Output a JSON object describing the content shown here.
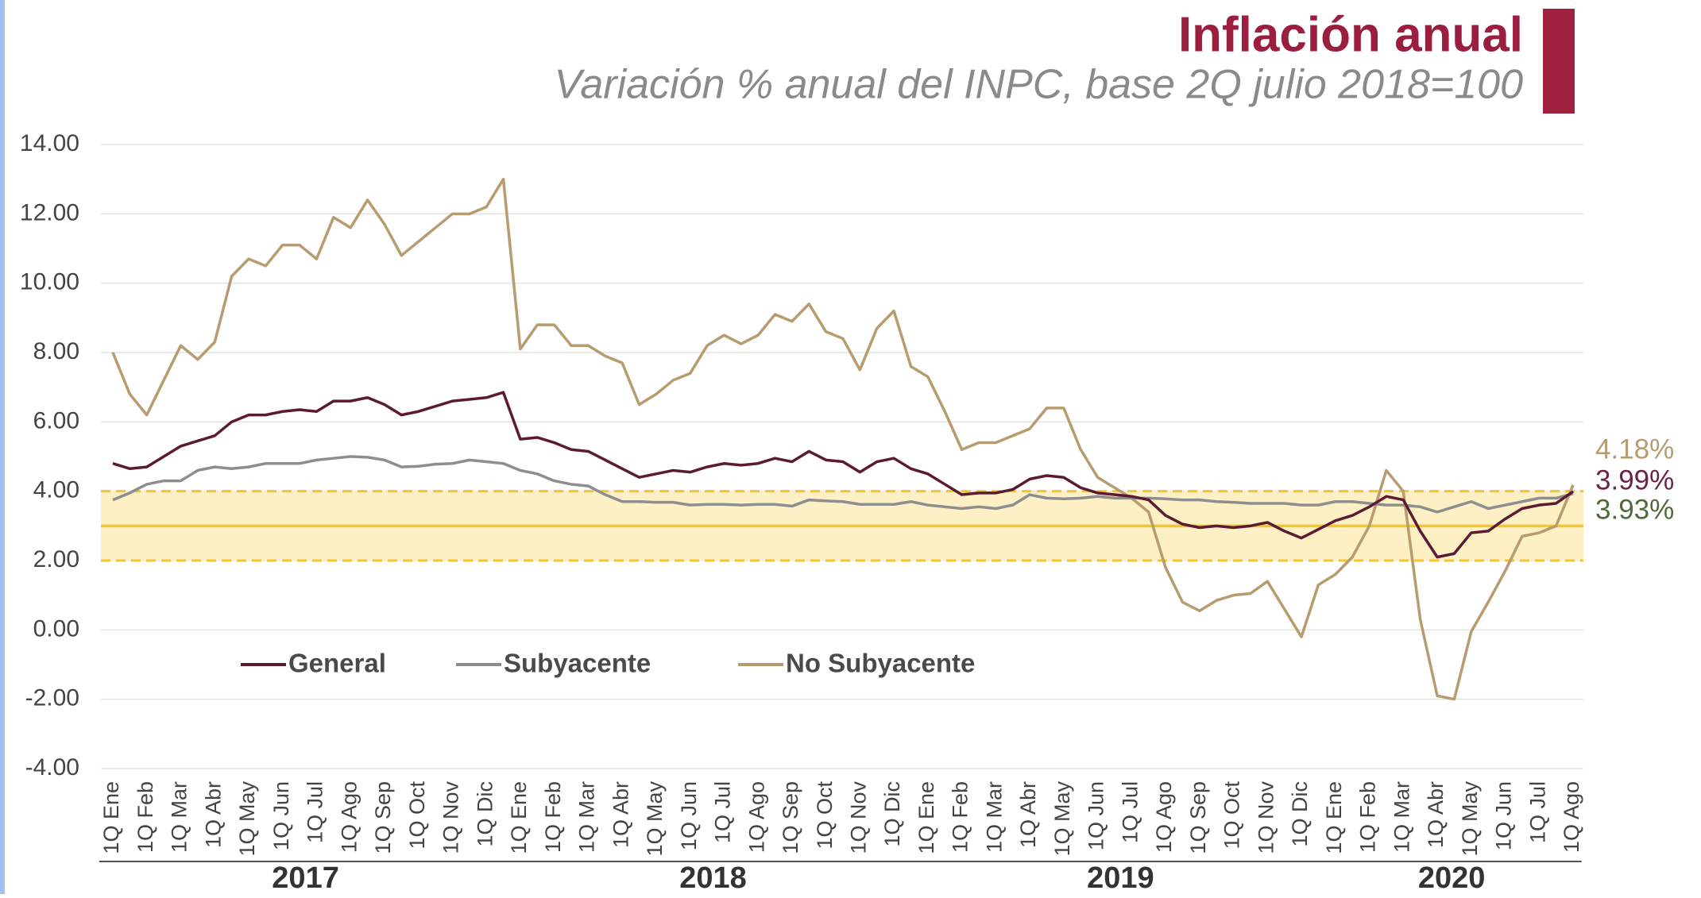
{
  "chart_data": {
    "type": "line",
    "title": "Inflación anual",
    "subtitle": "Variación % anual del INPC, base 2Q julio 2018=100",
    "categories": [
      "1Q Ene",
      null,
      "1Q Feb",
      null,
      "1Q Mar",
      null,
      "1Q Abr",
      null,
      "1Q May",
      null,
      "1Q Jun",
      null,
      "1Q Jul",
      null,
      "1Q Ago",
      null,
      "1Q Sep",
      null,
      "1Q Oct",
      null,
      "1Q Nov",
      null,
      "1Q Dic",
      null,
      "1Q Ene",
      null,
      "1Q Feb",
      null,
      "1Q Mar",
      null,
      "1Q Abr",
      null,
      "1Q May",
      null,
      "1Q Jun",
      null,
      "1Q Jul",
      null,
      "1Q Ago",
      null,
      "1Q Sep",
      null,
      "1Q Oct",
      null,
      "1Q Nov",
      null,
      "1Q Dic",
      null,
      "1Q Ene",
      null,
      "1Q Feb",
      null,
      "1Q Mar",
      null,
      "1Q Abr",
      null,
      "1Q May",
      null,
      "1Q Jun",
      null,
      "1Q Jul",
      null,
      "1Q Ago",
      null,
      "1Q Sep",
      null,
      "1Q Oct",
      null,
      "1Q Nov",
      null,
      "1Q Dic",
      null,
      "1Q Ene",
      null,
      "1Q Feb",
      null,
      "1Q Mar",
      null,
      "1Q Abr",
      null,
      "1Q May",
      null,
      "1Q Jun",
      null,
      "1Q Jul",
      null,
      "1Q Ago"
    ],
    "years": [
      "2017",
      "2018",
      "2019",
      "2020"
    ],
    "ylim": [
      -4,
      14
    ],
    "yticks": [
      {
        "value": -4,
        "label": "-4.00"
      },
      {
        "value": -2,
        "label": "-2.00"
      },
      {
        "value": 0,
        "label": "0.00"
      },
      {
        "value": 2,
        "label": "2.00"
      },
      {
        "value": 4,
        "label": "4.00"
      },
      {
        "value": 6,
        "label": "6.00"
      },
      {
        "value": 8,
        "label": "8.00"
      },
      {
        "value": 10,
        "label": "10.00"
      },
      {
        "value": 12,
        "label": "12.00"
      },
      {
        "value": 14,
        "label": "14.00"
      }
    ],
    "grid": true,
    "band": {
      "low": 2,
      "high": 4,
      "center": 3,
      "color": "#fdf0c4",
      "line_color": "#f2c62c"
    },
    "series": [
      {
        "name": "General",
        "color": "#5c1a33",
        "label_color": "#6b2445",
        "values": [
          4.8,
          4.65,
          4.7,
          5.0,
          5.3,
          5.45,
          5.6,
          6.0,
          6.2,
          6.2,
          6.3,
          6.35,
          6.3,
          6.6,
          6.6,
          6.7,
          6.5,
          6.2,
          6.3,
          6.45,
          6.6,
          6.65,
          6.7,
          6.85,
          5.5,
          5.55,
          5.4,
          5.2,
          5.15,
          4.9,
          4.65,
          4.4,
          4.5,
          4.6,
          4.55,
          4.7,
          4.8,
          4.75,
          4.8,
          4.95,
          4.85,
          5.15,
          4.9,
          4.85,
          4.55,
          4.85,
          4.95,
          4.65,
          4.5,
          4.2,
          3.9,
          3.95,
          3.95,
          4.05,
          4.35,
          4.45,
          4.4,
          4.1,
          3.95,
          3.9,
          3.85,
          3.75,
          3.3,
          3.05,
          2.95,
          3.0,
          2.95,
          3.0,
          3.1,
          2.85,
          2.65,
          2.9,
          3.15,
          3.3,
          3.55,
          3.85,
          3.75,
          2.85,
          2.1,
          2.2,
          2.8,
          2.85,
          3.2,
          3.5,
          3.6,
          3.65,
          3.99
        ],
        "value_labels": [
          null,
          null,
          null,
          null,
          null,
          null,
          null,
          null,
          null,
          null,
          null,
          null,
          null,
          null,
          null,
          null,
          null,
          null,
          null,
          null,
          null,
          null,
          null,
          null,
          null,
          null,
          null,
          null,
          null,
          null,
          null,
          null,
          null,
          null,
          null,
          null,
          null,
          null,
          null,
          null,
          null,
          null,
          null,
          null,
          null,
          null,
          null,
          null,
          null,
          null,
          null,
          null,
          null,
          null,
          null,
          null,
          null,
          null,
          null,
          null,
          null,
          null,
          null,
          null,
          null,
          null,
          null,
          null,
          null,
          null,
          null,
          null,
          null,
          null,
          null,
          null,
          null,
          null,
          null,
          null,
          null,
          null,
          null,
          null,
          null,
          null,
          "3.99%"
        ]
      },
      {
        "name": "Subyacente",
        "color": "#8e8e8e",
        "label_color": "#4e6b3a",
        "values": [
          3.75,
          3.95,
          4.2,
          4.3,
          4.3,
          4.6,
          4.7,
          4.65,
          4.7,
          4.8,
          4.8,
          4.8,
          4.9,
          4.95,
          5.0,
          4.98,
          4.9,
          4.7,
          4.72,
          4.78,
          4.8,
          4.9,
          4.85,
          4.8,
          4.6,
          4.5,
          4.3,
          4.2,
          4.15,
          3.9,
          3.7,
          3.7,
          3.68,
          3.68,
          3.6,
          3.62,
          3.62,
          3.6,
          3.62,
          3.62,
          3.57,
          3.75,
          3.72,
          3.7,
          3.62,
          3.62,
          3.62,
          3.7,
          3.6,
          3.55,
          3.5,
          3.55,
          3.5,
          3.6,
          3.9,
          3.8,
          3.78,
          3.8,
          3.85,
          3.8,
          3.8,
          3.8,
          3.78,
          3.75,
          3.75,
          3.7,
          3.68,
          3.65,
          3.65,
          3.65,
          3.6,
          3.6,
          3.7,
          3.7,
          3.65,
          3.6,
          3.6,
          3.55,
          3.4,
          3.55,
          3.7,
          3.5,
          3.6,
          3.7,
          3.8,
          3.8,
          3.93
        ],
        "value_labels": [
          null,
          null,
          null,
          null,
          null,
          null,
          null,
          null,
          null,
          null,
          null,
          null,
          null,
          null,
          null,
          null,
          null,
          null,
          null,
          null,
          null,
          null,
          null,
          null,
          null,
          null,
          null,
          null,
          null,
          null,
          null,
          null,
          null,
          null,
          null,
          null,
          null,
          null,
          null,
          null,
          null,
          null,
          null,
          null,
          null,
          null,
          null,
          null,
          null,
          null,
          null,
          null,
          null,
          null,
          null,
          null,
          null,
          null,
          null,
          null,
          null,
          null,
          null,
          null,
          null,
          null,
          null,
          null,
          null,
          null,
          null,
          null,
          null,
          null,
          null,
          null,
          null,
          null,
          null,
          null,
          null,
          null,
          null,
          null,
          null,
          null,
          "3.93%"
        ]
      },
      {
        "name": "No Subyacente",
        "color": "#b89b6e",
        "label_color": "#b89b6e",
        "values": [
          8.0,
          6.8,
          6.2,
          7.2,
          8.2,
          7.8,
          8.3,
          10.2,
          10.7,
          10.5,
          11.1,
          11.1,
          10.7,
          11.9,
          11.6,
          12.4,
          11.7,
          10.8,
          11.2,
          11.6,
          12.0,
          12.0,
          12.2,
          13.0,
          8.1,
          8.8,
          8.8,
          8.2,
          8.2,
          7.9,
          7.7,
          6.5,
          6.8,
          7.2,
          7.4,
          8.2,
          8.5,
          8.25,
          8.5,
          9.1,
          8.9,
          9.4,
          8.6,
          8.4,
          7.5,
          8.7,
          9.2,
          7.6,
          7.3,
          6.3,
          5.2,
          5.4,
          5.4,
          5.6,
          5.8,
          6.4,
          6.4,
          5.2,
          4.4,
          4.1,
          3.8,
          3.4,
          1.8,
          0.8,
          0.55,
          0.85,
          1.0,
          1.05,
          1.4,
          0.6,
          -0.2,
          1.3,
          1.6,
          2.1,
          3.0,
          4.6,
          4.0,
          0.3,
          -1.9,
          -2.0,
          -0.05,
          0.8,
          1.7,
          2.7,
          2.8,
          3.0,
          4.18
        ],
        "value_labels": [
          null,
          null,
          null,
          null,
          null,
          null,
          null,
          null,
          null,
          null,
          null,
          null,
          null,
          null,
          null,
          null,
          null,
          null,
          null,
          null,
          null,
          null,
          null,
          null,
          null,
          null,
          null,
          null,
          null,
          null,
          null,
          null,
          null,
          null,
          null,
          null,
          null,
          null,
          null,
          null,
          null,
          null,
          null,
          null,
          null,
          null,
          null,
          null,
          null,
          null,
          null,
          null,
          null,
          null,
          null,
          null,
          null,
          null,
          null,
          null,
          null,
          null,
          null,
          null,
          null,
          null,
          null,
          null,
          null,
          null,
          null,
          null,
          null,
          null,
          null,
          null,
          null,
          null,
          null,
          null,
          null,
          null,
          null,
          null,
          null,
          null,
          "4.18%"
        ]
      }
    ]
  }
}
